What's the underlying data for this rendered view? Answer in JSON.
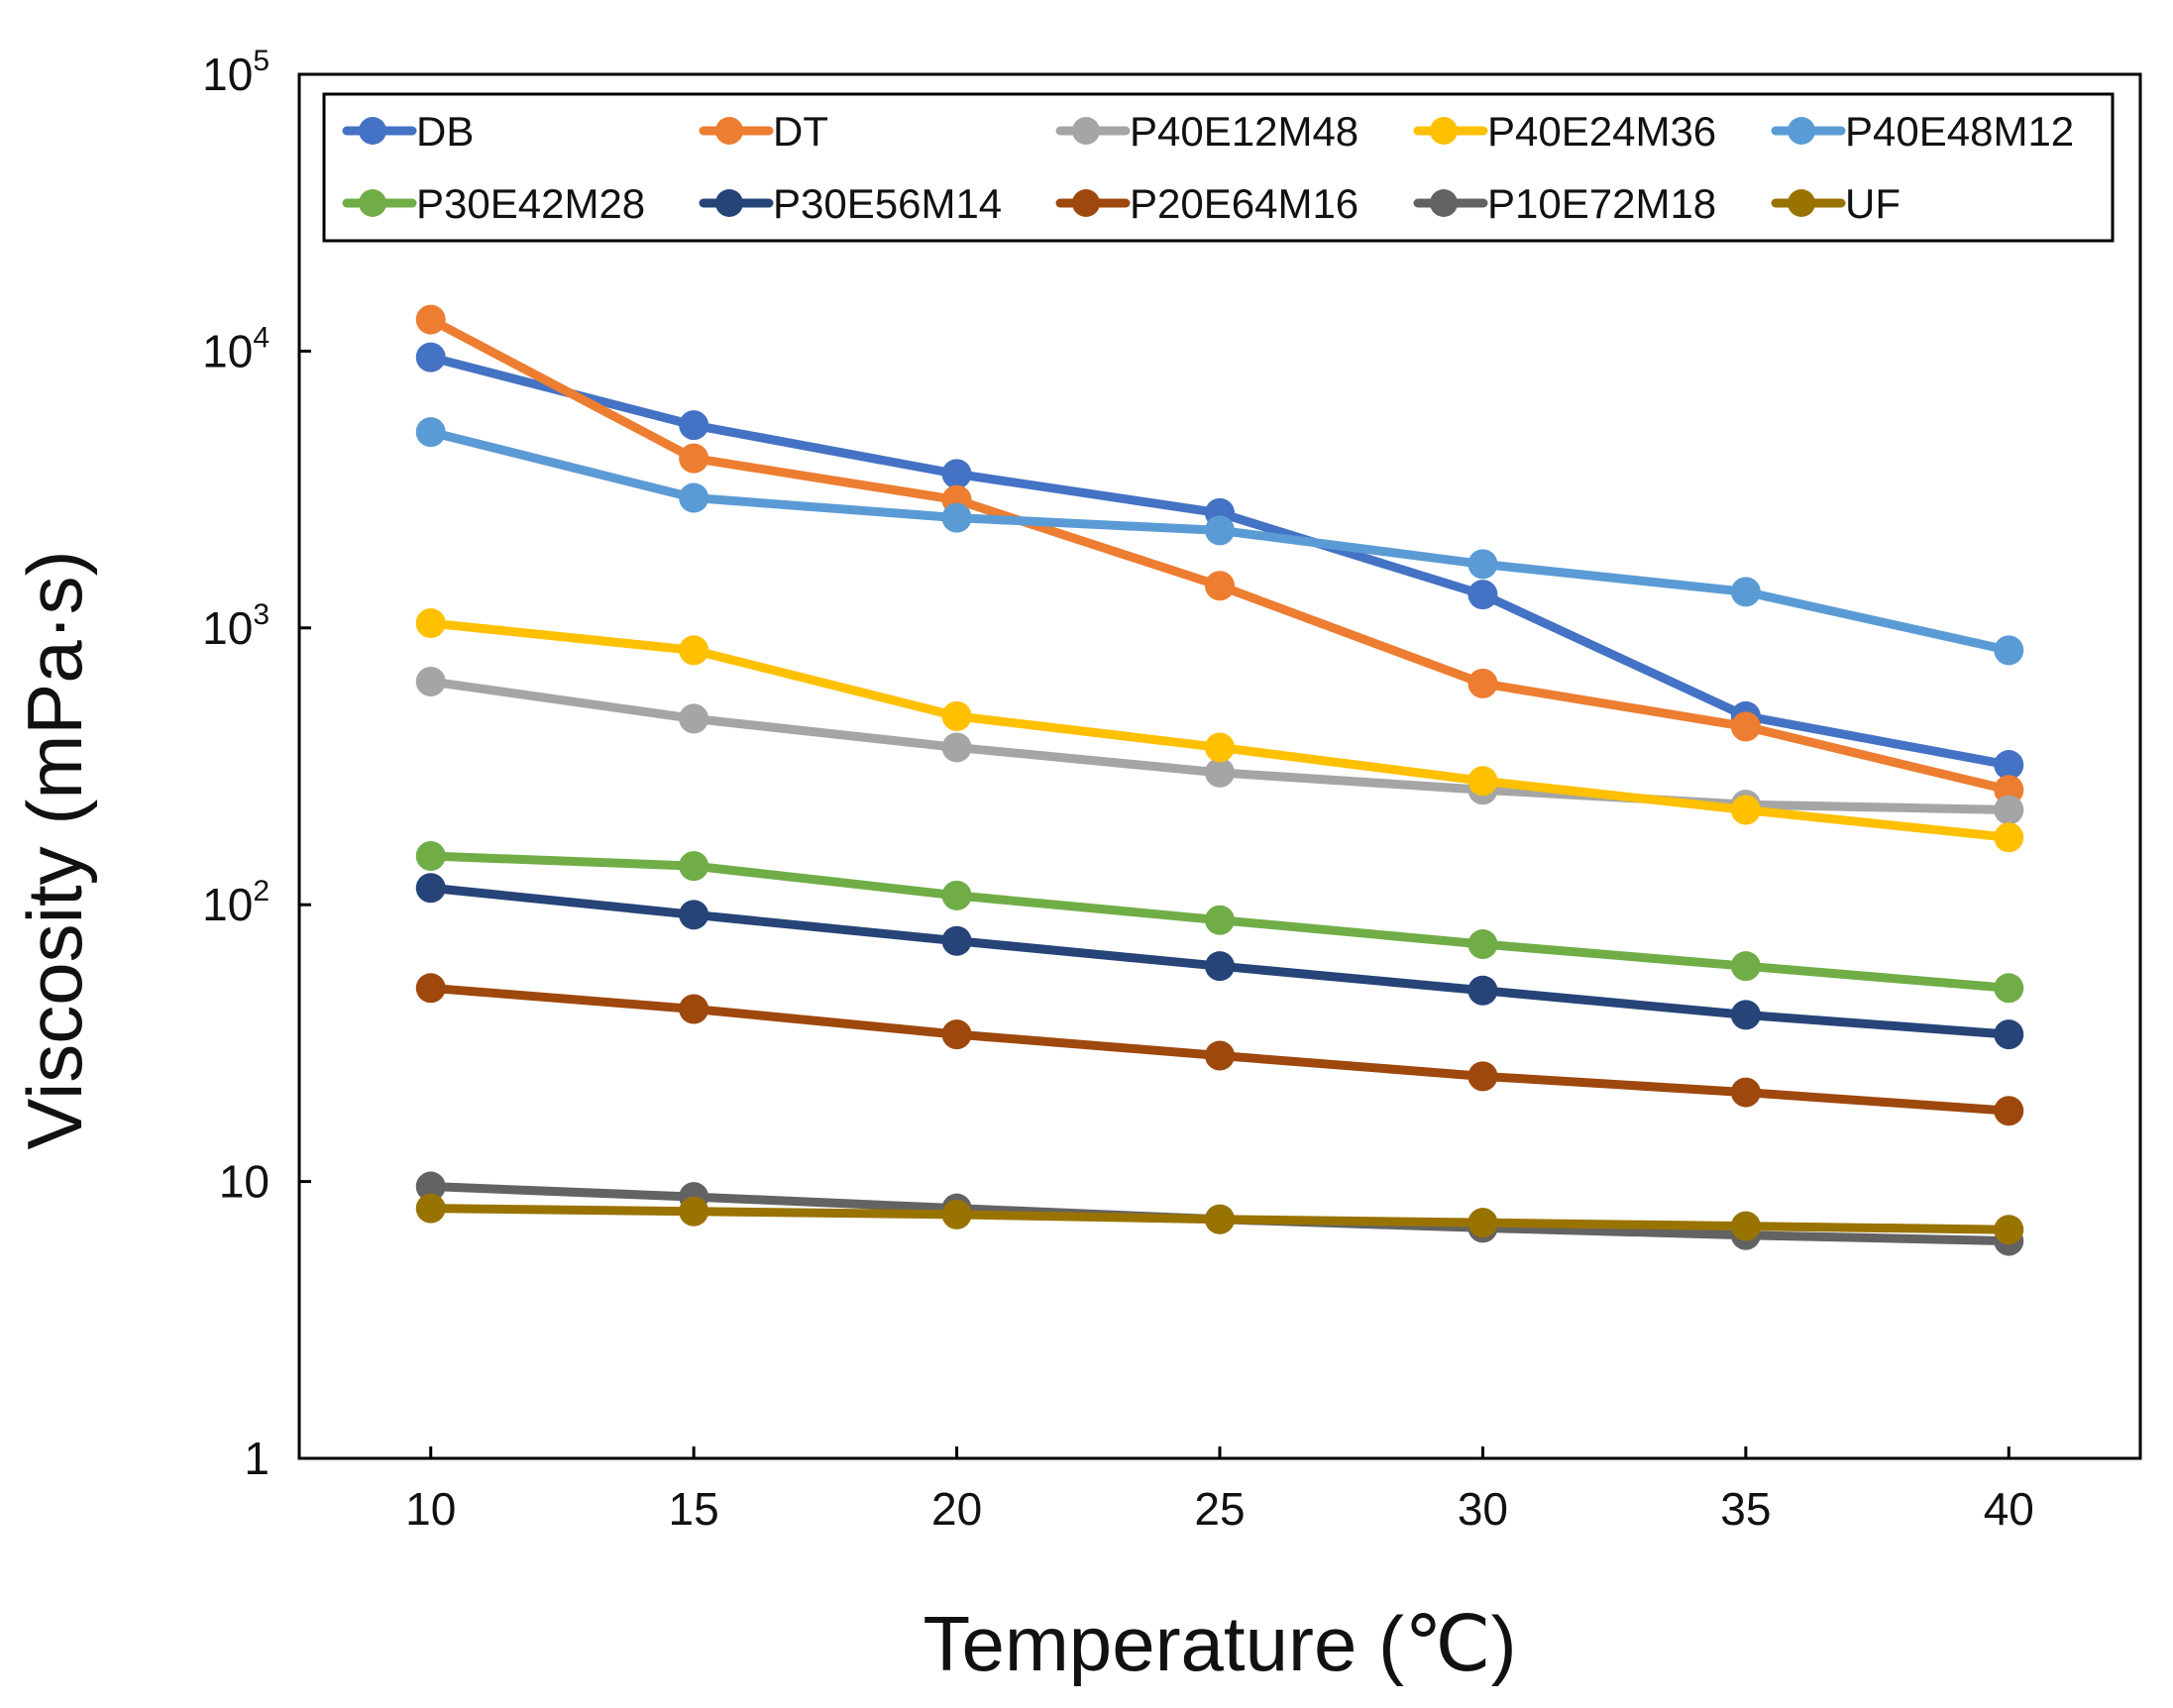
{
  "chart_data": {
    "type": "line",
    "title": "",
    "xlabel": "Temperature (℃)",
    "ylabel": "Viscosity (mPa·s)",
    "yscale": "log",
    "ylim": [
      1,
      100000
    ],
    "xlim": [
      7.5,
      42.5
    ],
    "x": [
      10,
      15,
      20,
      25,
      30,
      35,
      40
    ],
    "xticks": [
      "10",
      "15",
      "20",
      "25",
      "30",
      "35",
      "40"
    ],
    "yticks": [
      {
        "value": 1,
        "base": "1",
        "exp": ""
      },
      {
        "value": 10,
        "base": "10",
        "exp": ""
      },
      {
        "value": 100,
        "base": "10",
        "exp": "2"
      },
      {
        "value": 1000,
        "base": "10",
        "exp": "3"
      },
      {
        "value": 10000,
        "base": "10",
        "exp": "4"
      },
      {
        "value": 100000,
        "base": "10",
        "exp": "5"
      }
    ],
    "legend_position": "top",
    "series": [
      {
        "name": "DB",
        "color": "#4472c4",
        "values": [
          9500,
          5400,
          3600,
          2600,
          1320,
          480,
          320
        ]
      },
      {
        "name": "DT",
        "color": "#ed7d31",
        "values": [
          13000,
          4100,
          2900,
          1420,
          630,
          440,
          260
        ]
      },
      {
        "name": "P40E12M48",
        "color": "#a5a5a5",
        "values": [
          640,
          470,
          370,
          300,
          260,
          230,
          220
        ]
      },
      {
        "name": "P40E24M36",
        "color": "#ffc000",
        "values": [
          1040,
          830,
          480,
          370,
          280,
          220,
          175
        ]
      },
      {
        "name": "P40E48M12",
        "color": "#5b9bd5",
        "values": [
          5100,
          2950,
          2500,
          2250,
          1700,
          1350,
          830
        ]
      },
      {
        "name": "P30E42M28",
        "color": "#70ad47",
        "values": [
          150,
          138,
          108,
          88,
          72,
          60,
          50
        ]
      },
      {
        "name": "P30E56M14",
        "color": "#264478",
        "values": [
          115,
          92,
          74,
          60,
          49,
          40,
          34
        ]
      },
      {
        "name": "P20E64M16",
        "color": "#9e480e",
        "values": [
          50,
          42,
          34,
          28.5,
          24,
          21,
          18
        ]
      },
      {
        "name": "P10E72M18",
        "color": "#636363",
        "values": [
          9.6,
          8.8,
          8.0,
          7.3,
          6.8,
          6.4,
          6.1
        ]
      },
      {
        "name": "UF",
        "color": "#997300",
        "values": [
          8.0,
          7.8,
          7.6,
          7.3,
          7.1,
          6.9,
          6.7
        ]
      }
    ]
  }
}
